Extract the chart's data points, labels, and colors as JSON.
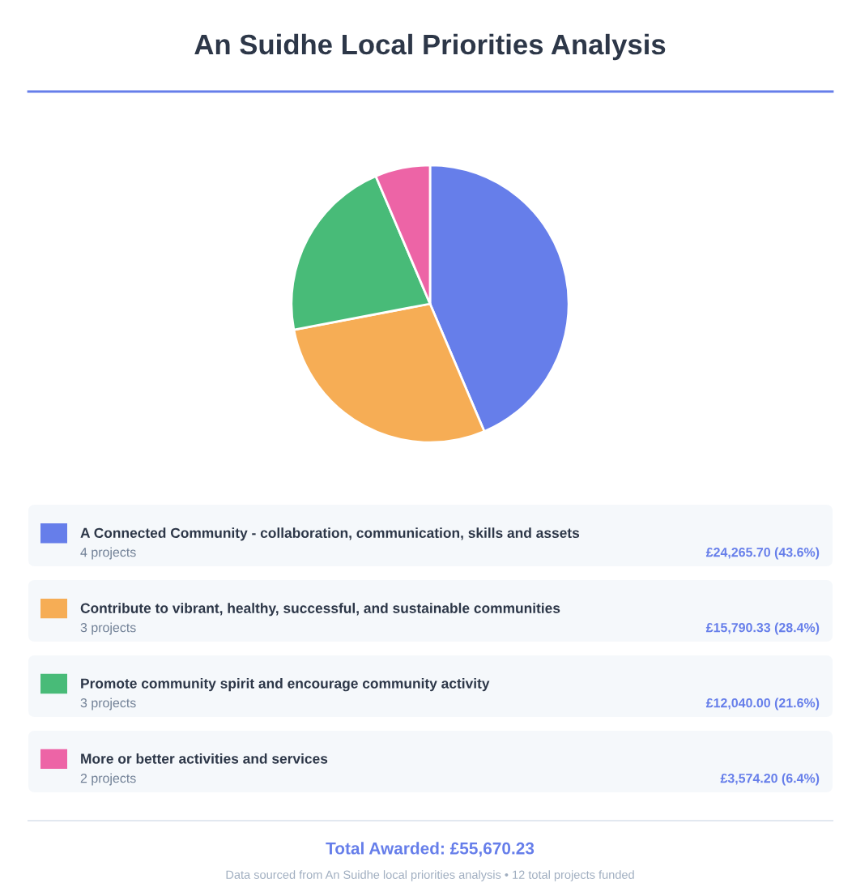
{
  "chart_data": {
    "type": "pie",
    "title": "An Suidhe Local Priorities Analysis",
    "categories": [
      "A Connected Community - collaboration, communication, skills and assets",
      "Contribute to vibrant, healthy, successful, and sustainable communities",
      "Promote community spirit and encourage community activity",
      "More or better activities and services"
    ],
    "values": [
      43.6,
      28.4,
      21.6,
      6.4
    ],
    "colors": [
      "#667eea",
      "#f6ad55",
      "#48bb78",
      "#ed64a6"
    ],
    "legend": "bottom",
    "annotations": [
      "4 projects",
      "3 projects",
      "3 projects",
      "2 projects",
      "£24,265.70 (43.6%)",
      "£15,790.33 (28.4%)",
      "£12,040.00 (21.6%)",
      "£3,574.20 (6.4%)",
      "Total Awarded: £55,670.23",
      "Data sourced from An Suidhe local priorities analysis • 12 total projects funded"
    ]
  }
}
